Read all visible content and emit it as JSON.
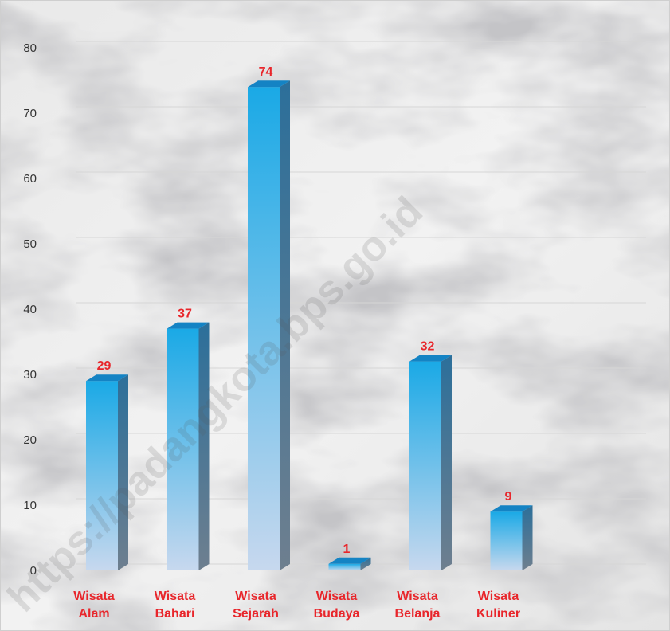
{
  "watermark": "https://padangkota.bps.go.id",
  "colors": {
    "bar_top": "#1aa9e6",
    "bar_bottom": "#c7d8ee",
    "bar_side": "#2c6f9a",
    "bar_cap": "#1483c4",
    "label": "#e8262b",
    "grid": "#d6d6d6"
  },
  "chart_data": {
    "type": "bar",
    "style": "3d-column",
    "categories": [
      [
        "Wisata",
        "Alam"
      ],
      [
        "Wisata",
        "Bahari"
      ],
      [
        "Wisata",
        "Sejarah"
      ],
      [
        "Wisata",
        "Budaya"
      ],
      [
        "Wisata",
        "Belanja"
      ],
      [
        "Wisata",
        "Kuliner"
      ]
    ],
    "values": [
      29,
      37,
      74,
      1,
      32,
      9
    ],
    "data_labels": [
      "29",
      "37",
      "74",
      "1",
      "32",
      "9"
    ],
    "ylim": [
      0,
      80
    ],
    "yticks": [
      0,
      10,
      20,
      30,
      40,
      50,
      60,
      70,
      80
    ],
    "title": "",
    "xlabel": "",
    "ylabel": "",
    "grid": true,
    "legend": "none",
    "background": "marble-texture"
  }
}
